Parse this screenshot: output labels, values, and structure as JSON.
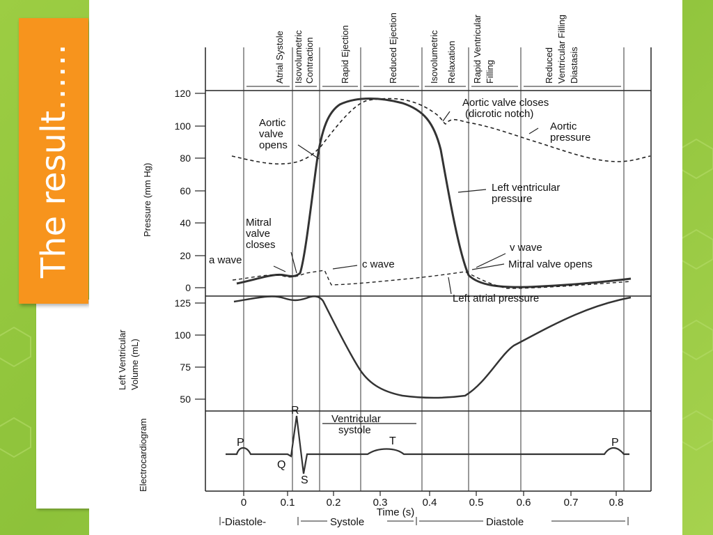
{
  "slide": {
    "title": "The result……"
  },
  "diagram": {
    "phases": [
      "Atrial Systole",
      "Isovolumetric",
      "Contraction",
      "Rapid Ejection",
      "Reduced Ejection",
      "Isovolumetric",
      "Relaxation",
      "Rapid Ventricular",
      "Filling",
      "Reduced",
      "Ventricular  Filling",
      "Diastasis"
    ],
    "pressure_axis": {
      "label": "Pressure (mm Hg)",
      "ticks": [
        "120",
        "100",
        "80",
        "60",
        "40",
        "20",
        "0"
      ]
    },
    "volume_axis": {
      "label_line1": "Left Ventricular",
      "label_line2": "Volume (mL)",
      "ticks": [
        "125",
        "100",
        "75",
        "50"
      ]
    },
    "ecg_axis": {
      "label": "Electrocardiogram"
    },
    "time_axis": {
      "label": "Time (s)",
      "ticks": [
        "0",
        "0.1",
        "0.2",
        "0.3",
        "0.4",
        "0.5",
        "0.6",
        "0.7",
        "0.8"
      ]
    },
    "cycle_labels": {
      "diastole1": "-Diastole-",
      "systole": "Systole",
      "diastole2": "Diastole"
    },
    "annotations": {
      "aortic_valve_opens": [
        "Aortic",
        "valve",
        "opens"
      ],
      "aortic_valve_closes": [
        "Aortic valve closes",
        "(dicrotic notch)"
      ],
      "aortic_pressure": [
        "Aortic",
        "pressure"
      ],
      "lv_pressure": [
        "Left ventricular",
        "pressure"
      ],
      "mitral_valve_closes": [
        "Mitral",
        "valve",
        "closes"
      ],
      "a_wave": "a wave",
      "c_wave": "c wave",
      "v_wave": "v wave",
      "mitral_valve_opens": "Mitral valve opens",
      "left_atrial_pressure": "Left atrial pressure",
      "ventricular_systole": [
        "Ventricular",
        "systole"
      ],
      "ecg_p": "P",
      "ecg_q": "Q",
      "ecg_r": "R",
      "ecg_s": "S",
      "ecg_t": "T",
      "ecg_p2": "P"
    }
  }
}
